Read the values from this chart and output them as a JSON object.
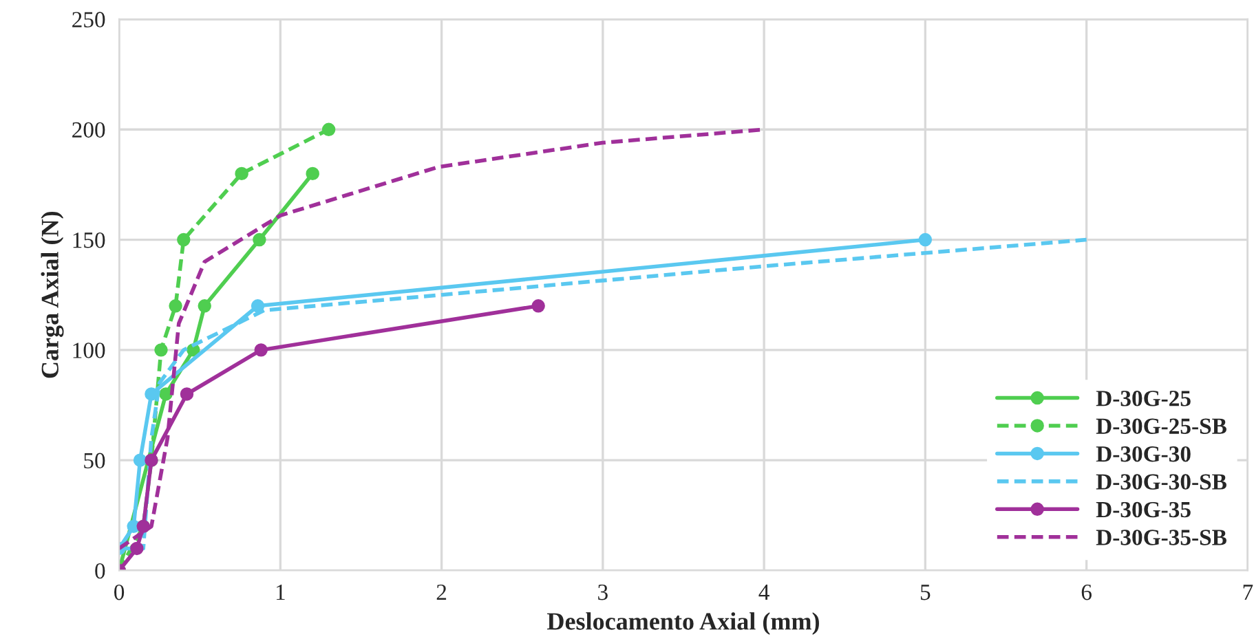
{
  "chart_data": {
    "type": "line",
    "xlabel": "Deslocamento Axial (mm)",
    "ylabel": "Carga Axial (N)",
    "xlim": [
      0,
      7
    ],
    "xticks": [
      0,
      1,
      2,
      3,
      4,
      5,
      6,
      7
    ],
    "ylim": [
      0,
      250
    ],
    "yticks": [
      0,
      50,
      100,
      150,
      200,
      250
    ],
    "grid": true,
    "legend": "bottom right",
    "series": [
      {
        "name": "D-30G-25",
        "color": "#4fce50",
        "marker": "circle",
        "line_style": "solid",
        "x": [
          0,
          0.29,
          0.46,
          0.53,
          0.87,
          1.2
        ],
        "values": [
          0,
          80,
          100,
          120,
          150,
          180
        ]
      },
      {
        "name": "D-30G-25-SB",
        "color": "#4fce50",
        "marker": "circle",
        "line_style": "dashed",
        "x": [
          0,
          0.15,
          0.2,
          0.26,
          0.35,
          0.4,
          0.76,
          1.3
        ],
        "values": [
          0,
          20,
          50,
          100,
          120,
          150,
          180,
          200
        ]
      },
      {
        "name": "D-30G-30",
        "color": "#5ac8f0",
        "marker": "circle",
        "line_style": "solid",
        "x": [
          0,
          0.09,
          0.13,
          0.2,
          0.86,
          5
        ],
        "values": [
          10,
          20,
          50,
          80,
          120,
          150
        ]
      },
      {
        "name": "D-30G-30-SB",
        "color": "#5ac8f0",
        "marker": "none",
        "line_style": "dashed",
        "x": [
          0,
          0.15,
          0.17,
          0.2,
          0.25,
          0.4,
          0.9,
          2,
          4,
          6
        ],
        "values": [
          10,
          10,
          30,
          60,
          85,
          100,
          118,
          125,
          138,
          150
        ]
      },
      {
        "name": "D-30G-35",
        "color": "#a0309a",
        "marker": "circle",
        "line_style": "solid",
        "x": [
          0,
          0.11,
          0.15,
          0.2,
          0.42,
          0.88,
          2.6
        ],
        "values": [
          0,
          10,
          20,
          50,
          80,
          100,
          120
        ]
      },
      {
        "name": "D-30G-35-SB",
        "color": "#a0309a",
        "marker": "none",
        "line_style": "dashed",
        "x": [
          0,
          0.2,
          0.3,
          0.37,
          0.53,
          1.0,
          1.98,
          3.0,
          4.0
        ],
        "values": [
          10,
          20,
          60,
          112,
          140,
          161,
          183,
          194,
          200
        ]
      }
    ]
  }
}
